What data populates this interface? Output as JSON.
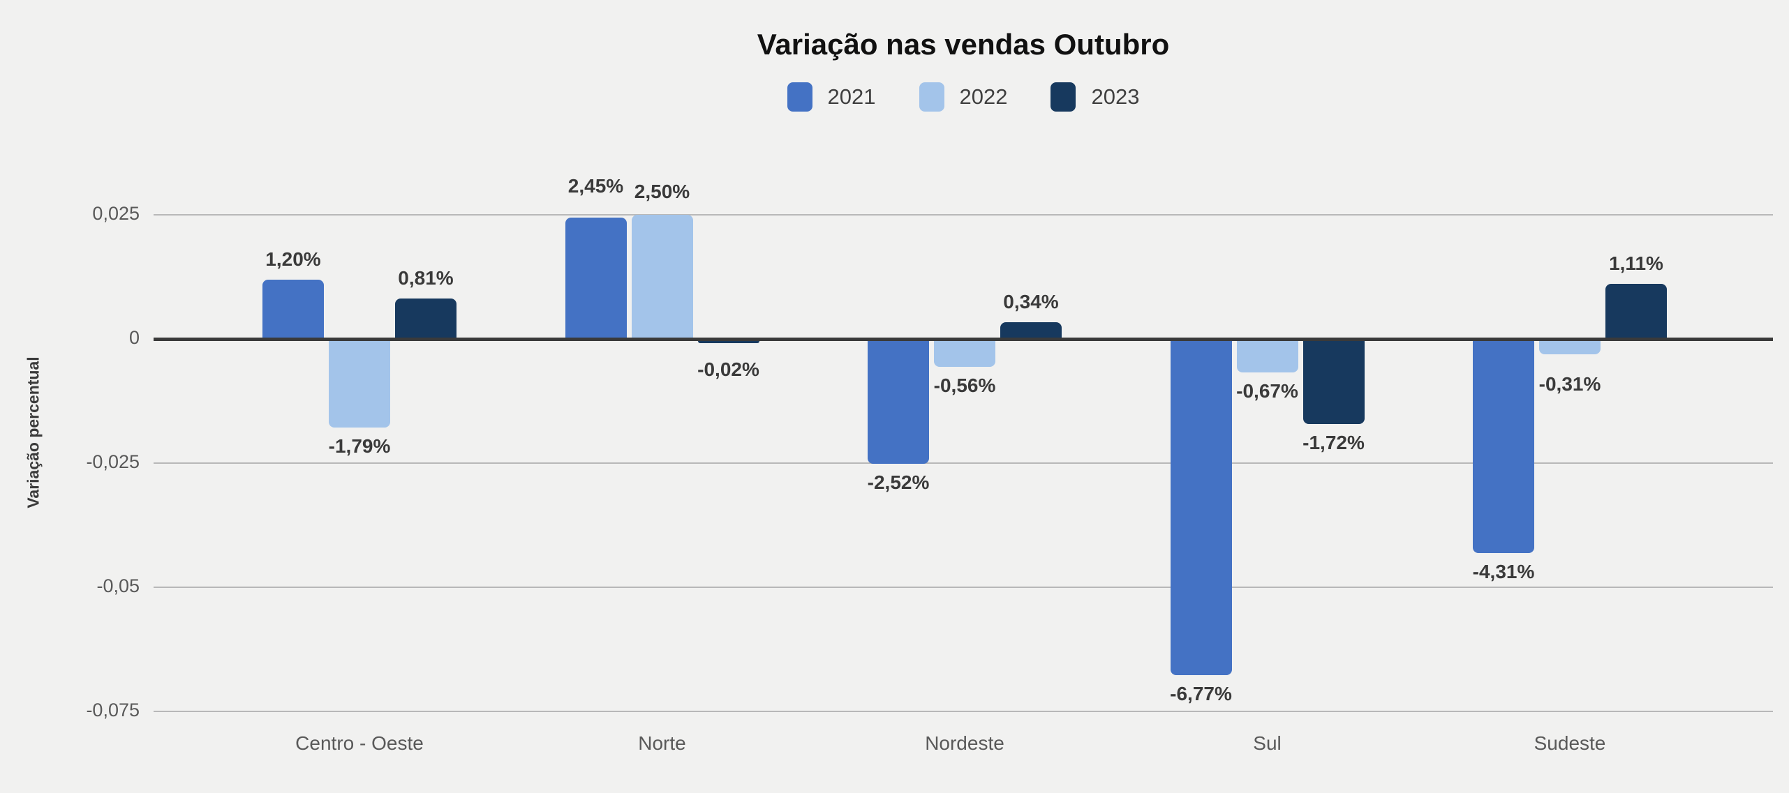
{
  "page": {
    "background_color": "#F1F1F0"
  },
  "chart_data": {
    "type": "bar",
    "title": "Variação nas vendas Outubro",
    "xlabel": "",
    "ylabel": "Variação percentual",
    "legend_position": "top",
    "grid": true,
    "ylim": [
      -0.075,
      0.025
    ],
    "categories": [
      "Centro - Oeste",
      "Norte",
      "Nordeste",
      "Sul",
      "Sudeste"
    ],
    "yticks": [
      {
        "value": 0.025,
        "label": "0,025"
      },
      {
        "value": 0,
        "label": "0"
      },
      {
        "value": -0.025,
        "label": "-0,025"
      },
      {
        "value": -0.05,
        "label": "-0,05"
      },
      {
        "value": -0.075,
        "label": "-0,075"
      }
    ],
    "series": [
      {
        "name": "2021",
        "color": "#4472C4",
        "values": [
          0.012,
          0.0245,
          -0.0252,
          -0.0677,
          -0.0431
        ],
        "labels": [
          "1,20%",
          "2,45%",
          "-2,52%",
          "-6,77%",
          "-4,31%"
        ]
      },
      {
        "name": "2022",
        "color": "#A3C4EA",
        "values": [
          -0.0179,
          0.025,
          -0.0056,
          -0.0067,
          -0.0031
        ],
        "labels": [
          "-1,79%",
          "2,50%",
          "-0,56%",
          "-0,67%",
          "-0,31%"
        ]
      },
      {
        "name": "2023",
        "color": "#17395E",
        "values": [
          0.0081,
          -0.0002,
          0.0034,
          -0.0172,
          0.0111
        ],
        "labels": [
          "0,81%",
          "-0,02%",
          "0,34%",
          "-1,72%",
          "1,11%"
        ]
      }
    ],
    "label_dy": [
      [
        0,
        -16,
        0,
        0,
        0
      ],
      [
        0,
        -4,
        0,
        0,
        16
      ],
      [
        0,
        16,
        0,
        0,
        0
      ]
    ],
    "colors": {
      "grid_line": "#B8B8B8",
      "zero_line": "#3A3A3A",
      "tick_label": "#595959",
      "category_label": "#595959",
      "data_label": "#3A3A3A",
      "legend_label": "#3F3F3F",
      "title": "#111111"
    }
  }
}
